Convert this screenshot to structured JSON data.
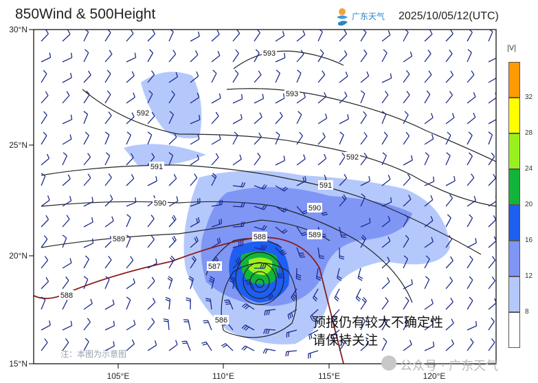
{
  "header": {
    "title": "850Wind & 500Height",
    "logo_text": "广东天气",
    "datetime": "2025/10/05/12(UTC)"
  },
  "axes": {
    "lat_labels": [
      "30°N",
      "25°N",
      "20°N",
      "15°N"
    ],
    "lon_labels": [
      "105°E",
      "110°E",
      "115°E",
      "120°E"
    ]
  },
  "colorbar": {
    "title": "|V|",
    "labels": [
      "32",
      "28",
      "24",
      "20",
      "16",
      "12",
      "8"
    ],
    "colors": [
      "#ff9a00",
      "#ffff00",
      "#9af01e",
      "#12b43c",
      "#1e5ef0",
      "#7f96f5",
      "#b4c8fc",
      "#ffffff"
    ]
  },
  "contour_labels": [
    "593",
    "593",
    "592",
    "592",
    "591",
    "591",
    "590",
    "590",
    "589",
    "589",
    "588",
    "588",
    "587",
    "586"
  ],
  "annotations": {
    "warning_line1": "预报仍有较大不确定性",
    "warning_line2": "请保持关注",
    "disclaimer": "注：本图为示意图",
    "watermark": "公众号 · 广东天气"
  },
  "colors": {
    "contour": "#222222",
    "contour_588": "#8b1a1a",
    "barb": "#1a2a8a"
  }
}
